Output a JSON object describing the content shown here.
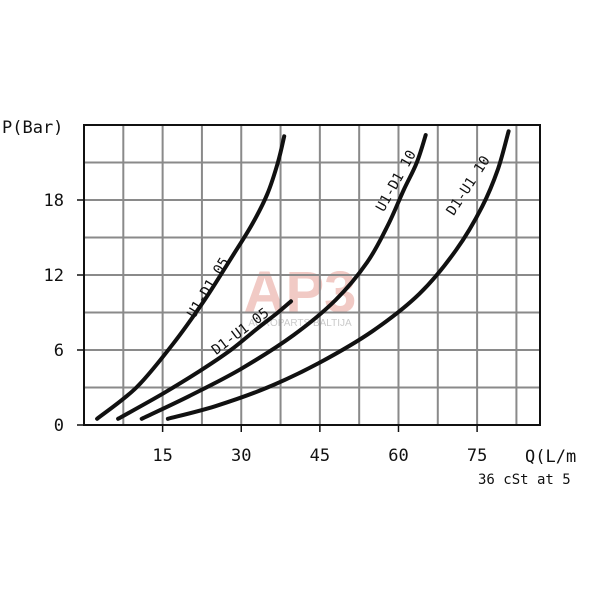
{
  "chart_data": {
    "type": "line",
    "xlabel": "Q(L/m",
    "ylabel": "P(Bar)",
    "note": "36 cSt at 5",
    "xlim": [
      0,
      87
    ],
    "ylim": [
      0,
      24
    ],
    "xticks": [
      "15",
      "30",
      "45",
      "60",
      "75"
    ],
    "xtick_values": [
      15,
      30,
      45,
      60,
      75
    ],
    "yticks": [
      "0",
      "6",
      "12",
      "18"
    ],
    "ytick_values": [
      0,
      6,
      12,
      18
    ],
    "grid": true,
    "series": [
      {
        "name": "U1-D1 05",
        "x": [
          2.5,
          10,
          17,
          23,
          28,
          32,
          35,
          37,
          38.2
        ],
        "y": [
          0.5,
          3,
          6.5,
          10,
          13.3,
          16,
          18.5,
          21,
          23.1
        ]
      },
      {
        "name": "D1-U1 05",
        "x": [
          6.5,
          15,
          22,
          28,
          33,
          37,
          39.5
        ],
        "y": [
          0.5,
          2.5,
          4.3,
          6,
          7.7,
          9,
          9.9
        ]
      },
      {
        "name": "U1-D1 10",
        "x": [
          11,
          20,
          30,
          40,
          48,
          54,
          58,
          61,
          63.5,
          65.2
        ],
        "y": [
          0.5,
          2.3,
          4.5,
          7.2,
          10,
          13,
          16,
          18.8,
          21,
          23.2
        ]
      },
      {
        "name": "D1-U1 10",
        "x": [
          16,
          25,
          35,
          45,
          55,
          64,
          71,
          76,
          79,
          81
        ],
        "y": [
          0.5,
          1.5,
          3,
          5,
          7.5,
          10.5,
          14,
          17.5,
          20.5,
          23.5
        ]
      }
    ],
    "curve_label_text": [
      "U1-D1 05",
      "D1-U1 05",
      "U1-D1 10",
      "D1-U1 10"
    ]
  },
  "watermark": {
    "logo": "AP3",
    "subtitle": "AGROPARTS BALTIJA"
  },
  "colors": {
    "line": "#111111",
    "grid": "#8a8a8a",
    "frame": "#111111"
  }
}
